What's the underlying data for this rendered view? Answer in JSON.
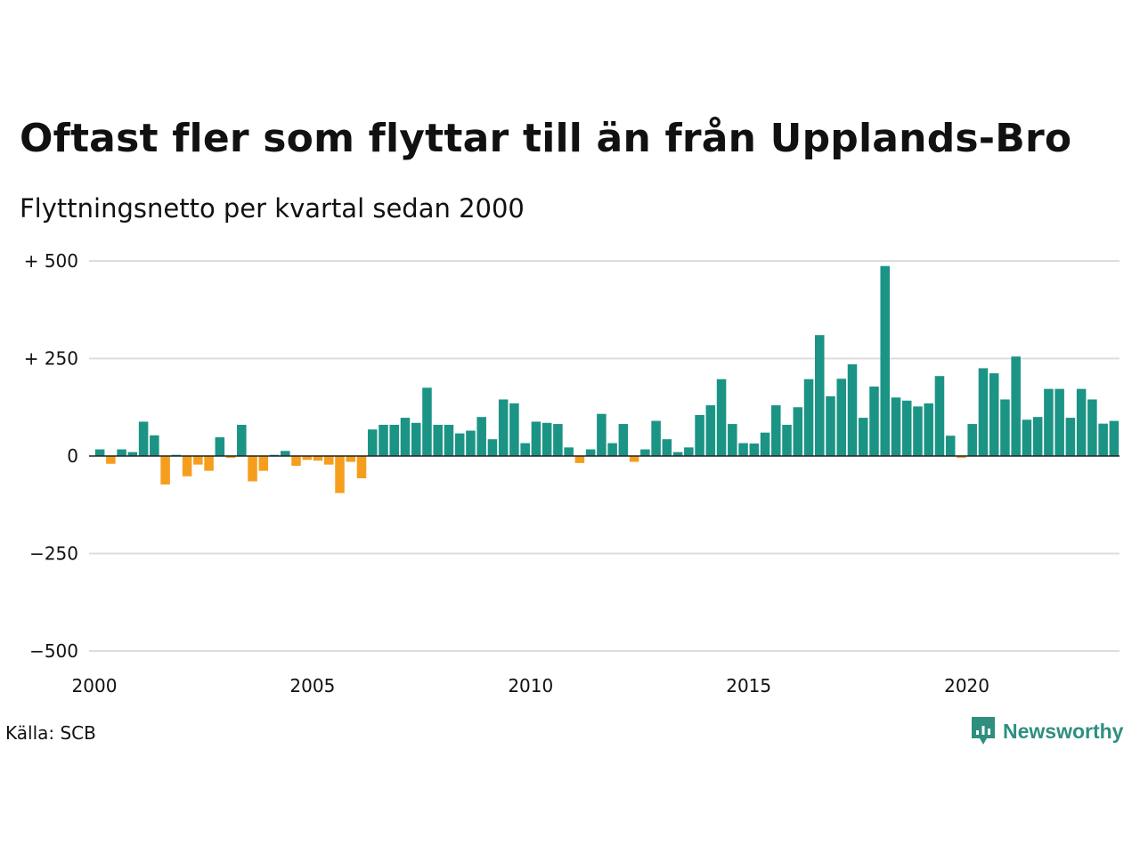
{
  "header": {
    "title": "Oftast fler som flyttar till än från Upplands-Bro",
    "subtitle": "Flyttningsnetto per kvartal sedan 2000"
  },
  "footer": {
    "source": "Källa: SCB",
    "brand": "Newsworthy"
  },
  "colors": {
    "positive": "#1b9485",
    "negative": "#f59e1e",
    "grid": "#dddddd",
    "baseline": "#222222"
  },
  "chart_data": {
    "type": "bar",
    "title": "Oftast fler som flyttar till än från Upplands-Bro",
    "subtitle": "Flyttningsnetto per kvartal sedan 2000",
    "xlabel": "",
    "ylabel": "",
    "ylim": [
      -500,
      500
    ],
    "yticks": [
      {
        "value": 500,
        "label": "+ 500"
      },
      {
        "value": 250,
        "label": "+ 250"
      },
      {
        "value": 0,
        "label": "0"
      },
      {
        "value": -250,
        "label": "−250"
      },
      {
        "value": -500,
        "label": "−500"
      }
    ],
    "xticks": [
      "2000",
      "2005",
      "2010",
      "2015",
      "2020"
    ],
    "start_year": 2000,
    "frequency": "quarterly",
    "grid": true,
    "series": [
      {
        "values": [
          17,
          -20,
          17,
          10,
          88,
          53,
          -73,
          3,
          -52,
          -22,
          -38,
          48,
          -5,
          80,
          -65,
          -38,
          3,
          13,
          -25,
          -10,
          -12,
          -22,
          -95,
          -15,
          -57,
          68,
          80,
          80,
          98,
          85,
          175,
          80,
          80,
          58,
          65,
          100,
          43,
          145,
          135,
          33,
          88,
          85,
          82,
          22,
          -18,
          17,
          108,
          33,
          82,
          -15,
          17,
          90,
          43,
          10,
          22,
          105,
          130,
          197,
          82,
          33,
          32,
          60,
          130,
          80,
          125,
          197,
          310,
          153,
          198,
          235,
          98,
          178,
          487,
          150,
          142,
          127,
          135,
          205,
          52,
          -5,
          82,
          225,
          212,
          145,
          255,
          93,
          100,
          172,
          172,
          98,
          172,
          145,
          83,
          90
        ]
      }
    ]
  }
}
